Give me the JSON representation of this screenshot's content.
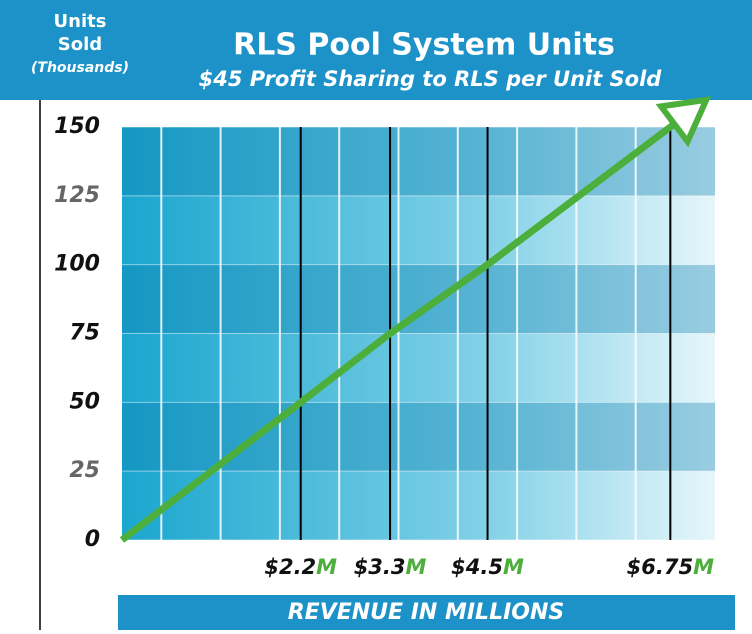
{
  "chart_data": {
    "type": "line",
    "title": "RLS Pool System Units",
    "subtitle": "$45 Profit Sharing to RLS per Unit Sold",
    "y_label": [
      "Units",
      "Sold",
      "(Thousands)"
    ],
    "x_label": "REVENUE IN MILLIONS",
    "x": [
      0,
      2.2,
      3.3,
      4.5,
      6.75
    ],
    "series": [
      {
        "color": "#4caf3c",
        "values": [
          0,
          50,
          75,
          100,
          150
        ]
      }
    ],
    "xlim": [
      0,
      7.3
    ],
    "xticks": [
      {
        "value": 2.2,
        "label": "$2.2",
        "suffix": "M"
      },
      {
        "value": 3.3,
        "label": "$3.3",
        "suffix": "M"
      },
      {
        "value": 4.5,
        "label": "$4.5",
        "suffix": "M"
      },
      {
        "value": 6.75,
        "label": "$6.75",
        "suffix": "M"
      }
    ],
    "ylim": [
      0,
      150
    ],
    "yticks": [
      0,
      25,
      50,
      75,
      100,
      125,
      150
    ],
    "grid": true
  }
}
